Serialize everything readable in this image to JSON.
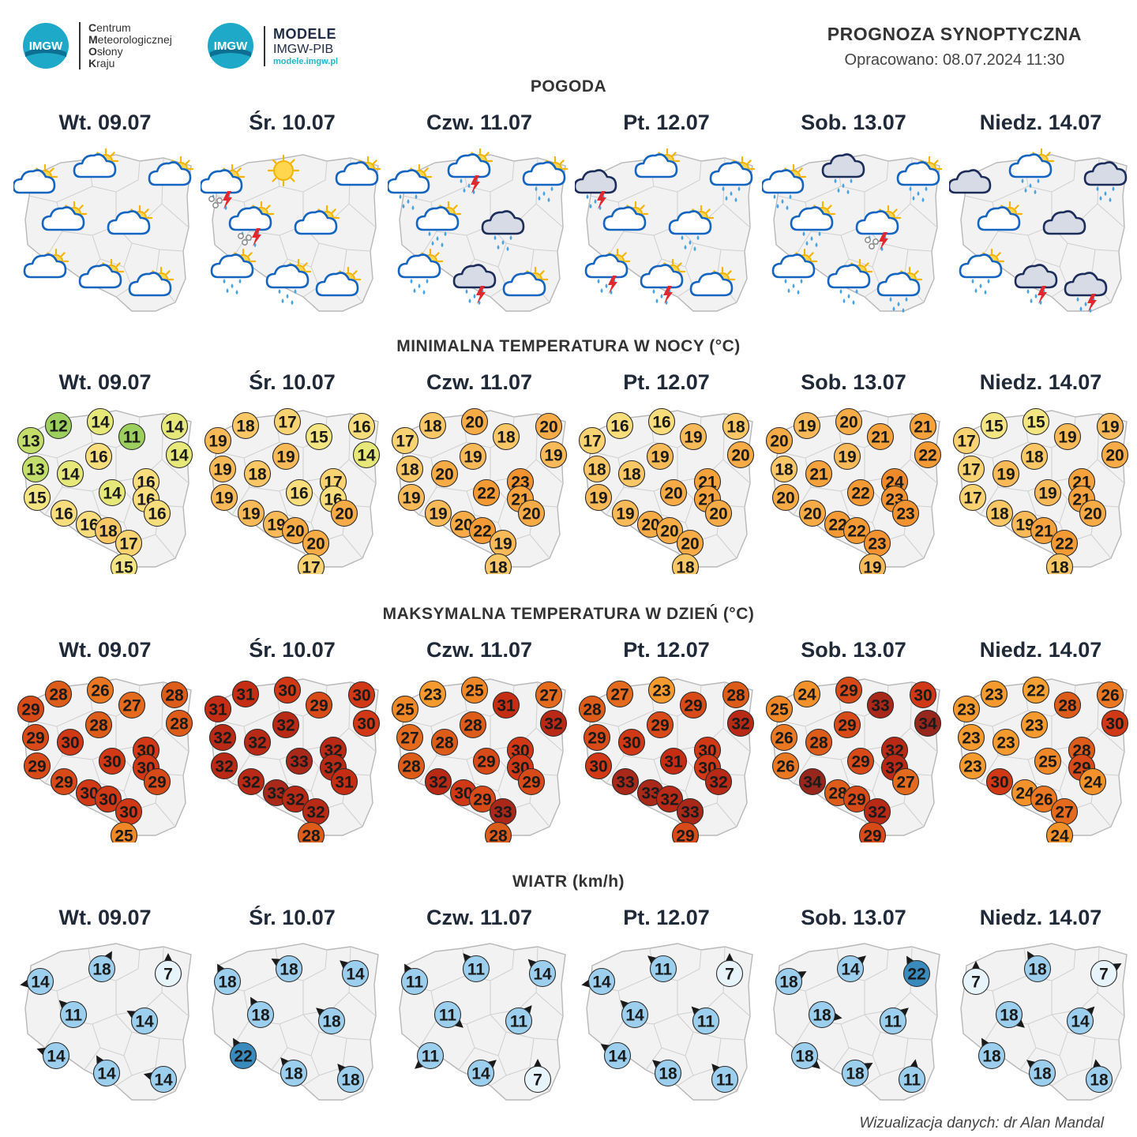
{
  "header": {
    "cmok_lines": [
      [
        "C",
        "entrum"
      ],
      [
        "M",
        "eteorologicznej"
      ],
      [
        "O",
        "słony"
      ],
      [
        "K",
        "raju"
      ]
    ],
    "imgw_emblem_text": "IMGW",
    "modele_title": "MODELE",
    "modele_sub": "IMGW-PIB",
    "modele_url": "modele.imgw.pl",
    "title": "PROGNOZA SYNOPTYCZNA",
    "prepared": "Opracowano: 08.07.2024 11:30"
  },
  "days": [
    "Wt. 09.07",
    "Śr. 10.07",
    "Czw. 11.07",
    "Pt. 12.07",
    "Sob. 13.07",
    "Niedz. 14.07"
  ],
  "sections": {
    "weather": "POGODA",
    "tmin": "MINIMALNA TEMPERATURA W NOCY (°C)",
    "tmax": "MAKSYMALNA TEMPERATURA W DZIEŃ (°C)",
    "wind": "WIATR (km/h)"
  },
  "weather_icons": [
    [
      "partly-cloudy",
      "partly-cloudy",
      "partly-cloudy",
      "partly-cloudy",
      "partly-cloudy",
      "partly-cloudy",
      "partly-cloudy",
      "partly-cloudy"
    ],
    [
      "thunder-hail",
      "sunny",
      "partly-cloudy",
      "thunder-hail",
      "partly-cloudy",
      "rain",
      "rain",
      "partly-cloudy"
    ],
    [
      "rain",
      "thunder-rain",
      "rain",
      "rain",
      "dark-rain",
      "rain",
      "dark-thunder",
      "partly-cloudy"
    ],
    [
      "dark-thunder",
      "partly-cloudy",
      "rain",
      "partly-cloudy",
      "rain",
      "thunder-rain",
      "thunder-rain",
      "partly-cloudy"
    ],
    [
      "rain",
      "dark-rain",
      "rain",
      "rain",
      "thunder-hail",
      "rain",
      "rain",
      "rain"
    ],
    [
      "dark-cloud",
      "rain",
      "dark-rain",
      "partly-cloudy",
      "dark-cloud",
      "rain",
      "dark-thunder",
      "dark-thunder"
    ]
  ],
  "tmin": [
    [
      13,
      12,
      14,
      11,
      14,
      14,
      13,
      14,
      16,
      16,
      15,
      14,
      16,
      16,
      16,
      16,
      18,
      17,
      15
    ],
    [
      19,
      18,
      17,
      15,
      16,
      14,
      19,
      18,
      19,
      17,
      19,
      16,
      16,
      19,
      20,
      19,
      20,
      20,
      17
    ],
    [
      17,
      18,
      20,
      18,
      20,
      19,
      18,
      20,
      19,
      23,
      19,
      22,
      21,
      19,
      20,
      20,
      22,
      19,
      18
    ],
    [
      17,
      16,
      16,
      19,
      18,
      20,
      18,
      18,
      19,
      21,
      19,
      20,
      21,
      19,
      20,
      20,
      20,
      20,
      18
    ],
    [
      20,
      19,
      20,
      21,
      21,
      22,
      18,
      21,
      19,
      24,
      20,
      22,
      23,
      20,
      23,
      22,
      22,
      23,
      19
    ],
    [
      17,
      15,
      15,
      19,
      19,
      20,
      17,
      19,
      18,
      21,
      17,
      19,
      21,
      18,
      20,
      19,
      21,
      22,
      18
    ]
  ],
  "tmax": [
    [
      29,
      28,
      26,
      27,
      28,
      28,
      29,
      30,
      28,
      30,
      29,
      30,
      30,
      29,
      29,
      30,
      30,
      30,
      25
    ],
    [
      31,
      31,
      30,
      29,
      30,
      30,
      32,
      32,
      32,
      32,
      32,
      33,
      32,
      32,
      31,
      33,
      32,
      32,
      28
    ],
    [
      25,
      23,
      25,
      31,
      27,
      32,
      27,
      28,
      28,
      30,
      28,
      29,
      30,
      32,
      29,
      30,
      29,
      33,
      28
    ],
    [
      28,
      27,
      23,
      29,
      28,
      32,
      29,
      30,
      29,
      30,
      30,
      31,
      30,
      33,
      32,
      33,
      32,
      33,
      29
    ],
    [
      25,
      24,
      29,
      33,
      30,
      34,
      26,
      28,
      29,
      32,
      26,
      29,
      32,
      34,
      27,
      28,
      29,
      32,
      29
    ],
    [
      23,
      23,
      22,
      28,
      26,
      30,
      23,
      23,
      23,
      28,
      23,
      25,
      29,
      30,
      24,
      24,
      26,
      27,
      24
    ]
  ],
  "wind": [
    [
      14,
      18,
      7,
      11,
      14,
      14,
      14,
      14
    ],
    [
      18,
      18,
      14,
      18,
      18,
      22,
      18,
      18
    ],
    [
      11,
      11,
      14,
      11,
      11,
      11,
      14,
      7
    ],
    [
      14,
      11,
      7,
      14,
      11,
      14,
      18,
      11
    ],
    [
      18,
      14,
      22,
      18,
      11,
      18,
      18,
      11
    ],
    [
      7,
      18,
      7,
      18,
      14,
      18,
      18,
      18
    ]
  ],
  "wind_dirs": [
    [
      260,
      30,
      0,
      315,
      300,
      290,
      330,
      285
    ],
    [
      330,
      300,
      310,
      330,
      310,
      330,
      320,
      320
    ],
    [
      330,
      320,
      315,
      130,
      40,
      230,
      50,
      0
    ],
    [
      260,
      310,
      0,
      315,
      315,
      305,
      310,
      320
    ],
    [
      60,
      50,
      330,
      100,
      50,
      130,
      60,
      10
    ],
    [
      0,
      330,
      60,
      130,
      45,
      330,
      310,
      350
    ]
  ],
  "colors": {
    "weather_blue": "#1565c0",
    "sun": "#f5b400",
    "wind_light": "#e7f4fb",
    "wind_mid": "#9ccfee",
    "wind_strong": "#3a8bbd",
    "map_fill": "#f2f2f2",
    "map_stroke": "#b8b8b8"
  },
  "footer": "Wizualizacja danych: dr Alan Mandal"
}
